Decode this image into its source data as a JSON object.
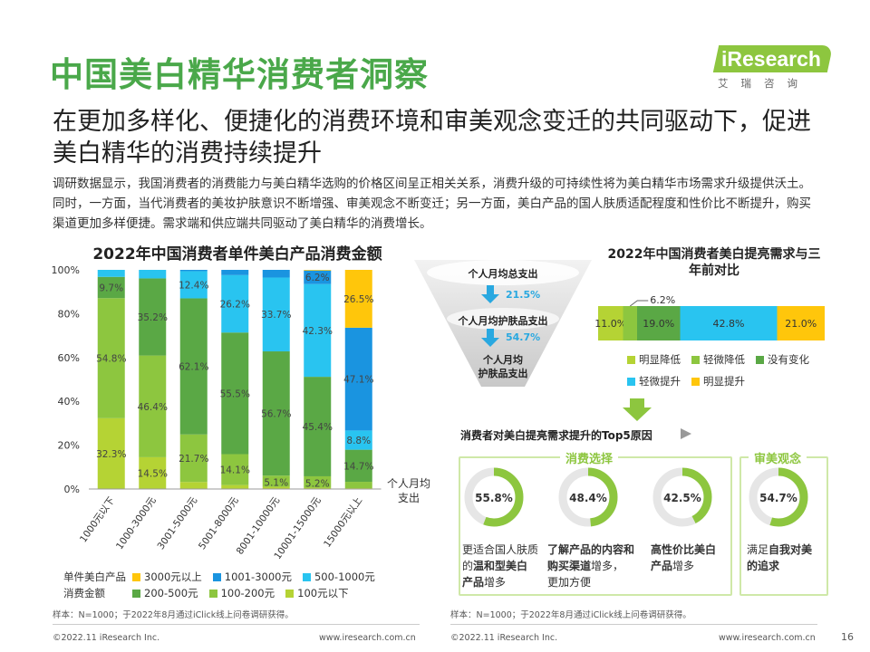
{
  "header": {
    "title": "中国美白精华消费者洞察",
    "subtitle": "在更加多样化、便捷化的消费环境和审美观念变迁的共同驱动下，促进美白精华的消费持续提升",
    "body": "调研数据显示，我国消费者的消费能力与美白精华选购的价格区间呈正相关关系，消费升级的可持续性将为美白精华市场需求升级提供沃土。同时，一方面，当代消费者的美妆护肤意识不断增强、审美观念不断变迁；另一方面，美白产品的国人肤质适配程度和性价比不断提升，购买渠道更加多样便捷。需求端和供应端共同驱动了美白精华的消费增长。"
  },
  "logo": {
    "word": "iResearch",
    "cn": "艾瑞咨询"
  },
  "colors": {
    "c100below": "#b5d334",
    "c100_200": "#8dc63f",
    "c200_500": "#5aa845",
    "c500_1000": "#29c4f0",
    "c1001_3000": "#1a94e0",
    "c3000above": "#ffc60b",
    "accent_green": "#4aa84a"
  },
  "chart_data": [
    {
      "type": "bar",
      "stacked": true,
      "title": "2022年中国消费者单件美白产品消费金额",
      "xlabel": "个人月均支出",
      "ylabel": "",
      "ylim": [
        0,
        100
      ],
      "yticks": [
        "0%",
        "20%",
        "40%",
        "60%",
        "80%",
        "100%"
      ],
      "categories": [
        "1000元以下",
        "1000-3000元",
        "3001-5000元",
        "5001-8000元",
        "8001-10000元",
        "10001-15000元",
        "15000元以上"
      ],
      "legend_title": "单件美白产品消费金额",
      "series": [
        {
          "name": "100元以下",
          "color": "#b5d334",
          "values": [
            32.3,
            14.5,
            3.2,
            1.8,
            1.0,
            0.6,
            0.4
          ],
          "labels": [
            "32.3%",
            "14.5%",
            "",
            "",
            "",
            "",
            ""
          ]
        },
        {
          "name": "100-200元",
          "color": "#8dc63f",
          "values": [
            54.8,
            46.4,
            21.7,
            14.1,
            5.1,
            5.2,
            2.9
          ],
          "labels": [
            "54.8%",
            "46.4%",
            "21.7%",
            "14.1%",
            "5.1%",
            "5.2%",
            ""
          ]
        },
        {
          "name": "200-500元",
          "color": "#5aa845",
          "values": [
            9.7,
            35.2,
            62.1,
            55.5,
            56.7,
            45.4,
            14.7
          ],
          "labels": [
            "9.7%",
            "35.2%",
            "62.1%",
            "55.5%",
            "56.7%",
            "45.4%",
            "14.7%"
          ]
        },
        {
          "name": "500-1000元",
          "color": "#29c4f0",
          "values": [
            3.2,
            3.9,
            12.4,
            26.2,
            33.7,
            42.3,
            8.8
          ],
          "labels": [
            "",
            "",
            "12.4%",
            "26.2%",
            "33.7%",
            "42.3%",
            "8.8%"
          ]
        },
        {
          "name": "1001-3000元",
          "color": "#1a94e0",
          "values": [
            0,
            0,
            0.6,
            2.4,
            3.5,
            6.2,
            47.1
          ],
          "labels": [
            "",
            "",
            "",
            "",
            "",
            "6.2%",
            "47.1%"
          ]
        },
        {
          "name": "3000元以上",
          "color": "#ffc60b",
          "values": [
            0,
            0,
            0,
            0,
            0,
            0.3,
            26.5
          ],
          "labels": [
            "",
            "",
            "",
            "",
            "",
            "",
            "26.5%"
          ]
        }
      ]
    },
    {
      "type": "bar",
      "stacked": true,
      "orientation": "horizontal",
      "title": "2022年中国消费者美白提亮需求与三年前对比",
      "series": [
        {
          "name": "明显降低",
          "color": "#b5d334",
          "value": 11.0,
          "label": "11.0%"
        },
        {
          "name": "轻微降低",
          "color": "#8dc63f",
          "value": 6.2,
          "label": "6.2%"
        },
        {
          "name": "没有变化",
          "color": "#5aa845",
          "value": 19.0,
          "label": "19.0%"
        },
        {
          "name": "轻微提升",
          "color": "#29c4f0",
          "value": 42.8,
          "label": "42.8%"
        },
        {
          "name": "明显提升",
          "color": "#ffc60b",
          "value": 21.0,
          "label": "21.0%"
        }
      ]
    }
  ],
  "funnel": {
    "levels": [
      "个人月均总支出",
      "个人月均护肤品支出",
      "个人月均护肤品支出"
    ],
    "level3_line1": "个人月均",
    "level3_line2": "护肤品支出",
    "rates": [
      "21.5%",
      "54.7%"
    ]
  },
  "top5": {
    "title": "消费者对美白提亮需求提升的Top5原因",
    "group1_label": "消费选择",
    "group2_label": "审美观念",
    "items": [
      {
        "value": 55.8,
        "label": "55.8%",
        "text_pre": "更适合国人肤质的",
        "text_bold": "温和型美白产品",
        "text_post": "增多"
      },
      {
        "value": 48.4,
        "label": "48.4%",
        "text_pre": "",
        "text_bold": "了解产品的内容和购买渠道",
        "text_post": "增多，更加方便"
      },
      {
        "value": 42.5,
        "label": "42.5%",
        "text_pre": "",
        "text_bold": "高性价比美白产品",
        "text_post": "增多"
      },
      {
        "value": 54.7,
        "label": "54.7%",
        "text_pre": "满足",
        "text_bold": "自我对美的追求",
        "text_post": ""
      }
    ]
  },
  "footer": {
    "source_left": "样本：N=1000；于2022年8月通过iClick线上问卷调研获得。",
    "source_right": "样本：N=1000；于2022年8月通过iClick线上问卷调研获得。",
    "copyright_left": "©2022.11 iResearch Inc.",
    "url_left": "www.iresearch.com.cn",
    "copyright_right": "©2022.11 iResearch Inc.",
    "url_right": "www.iresearch.com.cn",
    "page": "16"
  }
}
